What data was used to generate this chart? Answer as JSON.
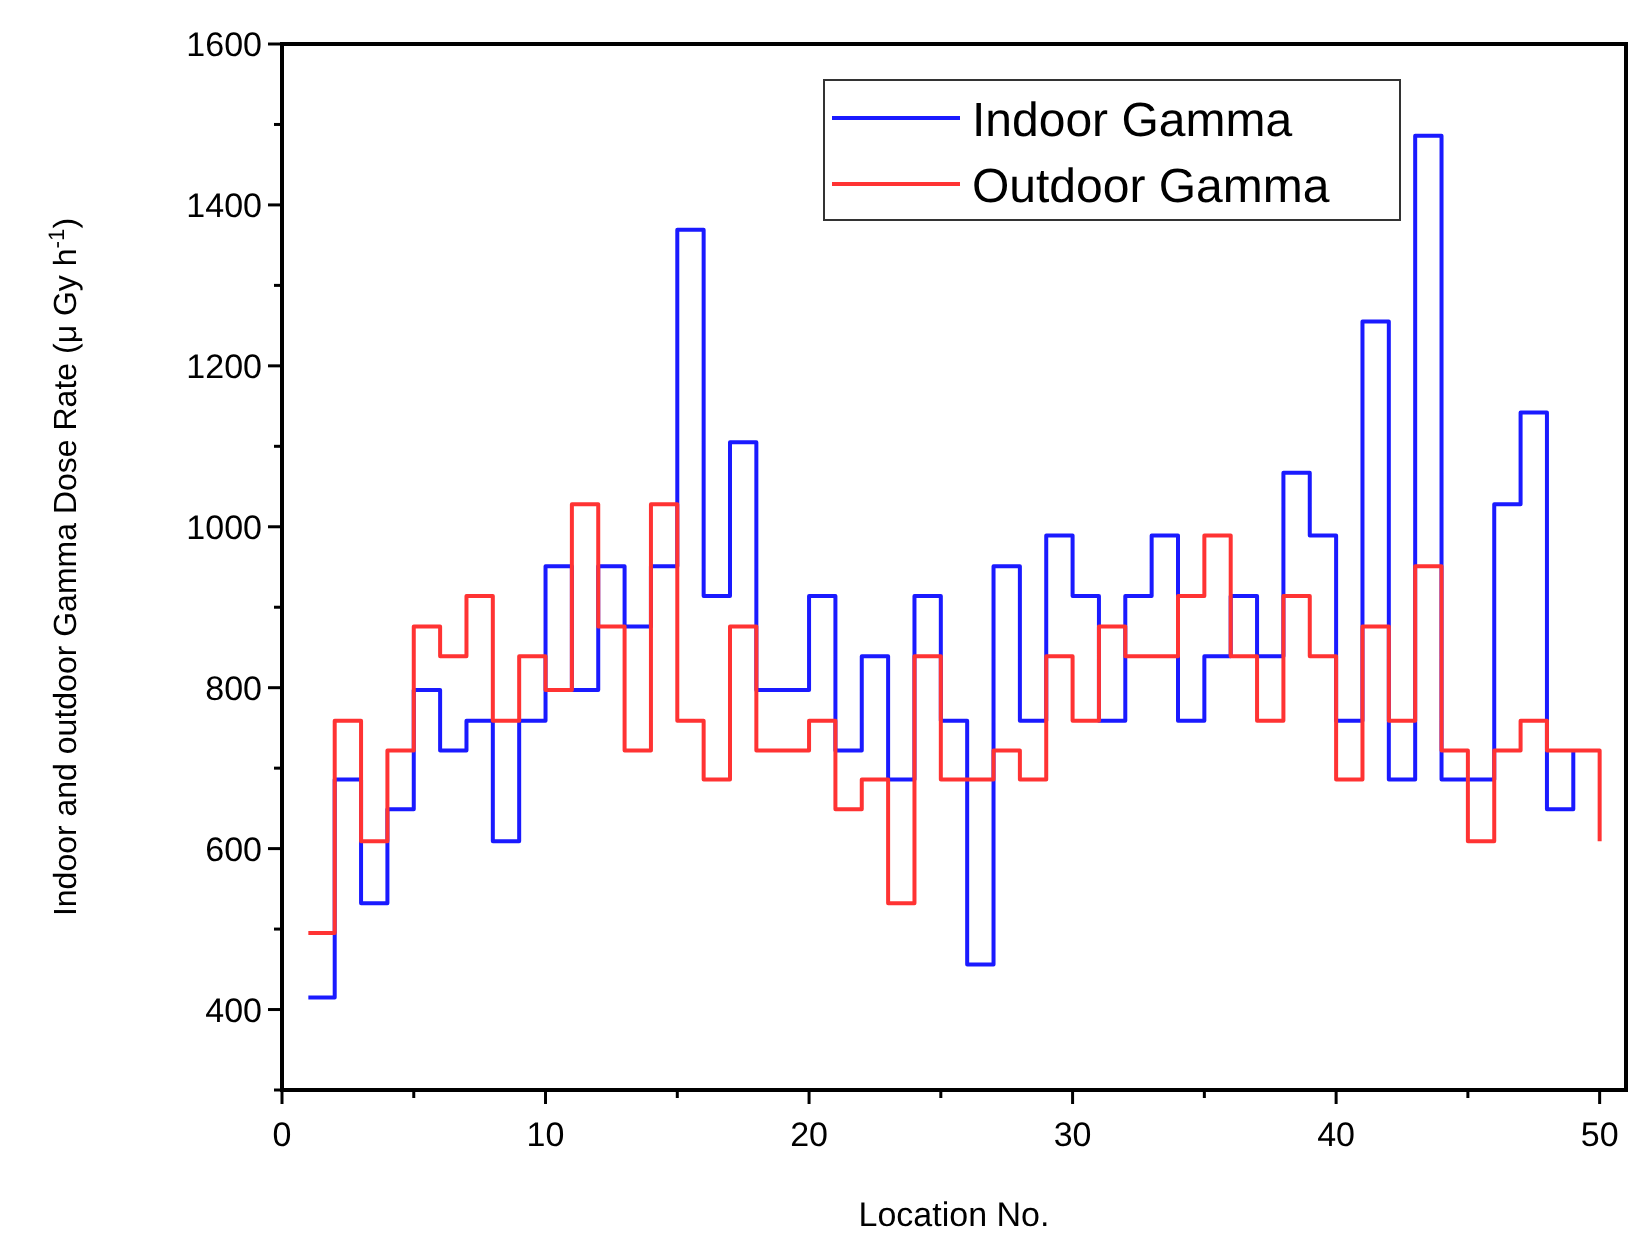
{
  "chart_data": {
    "type": "step",
    "xlabel": "Location No.",
    "ylabel": "Indoor and outdoor Gamma Dose Rate (μ Gy h$^{-1}$)",
    "x": [
      1,
      2,
      3,
      4,
      5,
      6,
      7,
      8,
      9,
      10,
      11,
      12,
      13,
      14,
      15,
      16,
      17,
      18,
      19,
      20,
      21,
      22,
      23,
      24,
      25,
      26,
      27,
      28,
      29,
      30,
      31,
      32,
      33,
      34,
      35,
      36,
      37,
      38,
      39,
      40,
      41,
      42,
      43,
      44,
      45,
      46,
      47,
      48,
      49,
      50
    ],
    "series": [
      {
        "name": "Indoor Gamma",
        "color": "#1a1aff",
        "values": [
          415,
          686,
          532,
          649,
          797,
          722,
          759,
          609,
          759,
          951,
          797,
          951,
          876,
          951,
          1369,
          914,
          1105,
          797,
          797,
          914,
          722,
          839,
          686,
          914,
          759,
          456,
          951,
          759,
          989,
          914,
          759,
          914,
          989,
          759,
          839,
          914,
          839,
          1067,
          989,
          759,
          1255,
          686,
          1486,
          686,
          686,
          1028,
          1142,
          649,
          722,
          null
        ]
      },
      {
        "name": "Outdoor Gamma",
        "color": "#ff3333",
        "values": [
          495,
          759,
          609,
          722,
          876,
          839,
          914,
          759,
          839,
          797,
          1028,
          876,
          722,
          1028,
          759,
          686,
          876,
          722,
          722,
          759,
          649,
          686,
          532,
          839,
          686,
          686,
          722,
          686,
          839,
          759,
          876,
          839,
          839,
          914,
          989,
          839,
          759,
          914,
          839,
          686,
          876,
          759,
          951,
          722,
          609,
          722,
          759,
          722,
          722,
          609
        ]
      }
    ],
    "xlim": [
      0,
      51
    ],
    "xticks": [
      0,
      {
        "value": 5,
        "label": null
      },
      10,
      {
        "value": 15,
        "label": null
      },
      20,
      {
        "value": 25,
        "label": null
      },
      30,
      {
        "value": 35,
        "label": null
      },
      40,
      {
        "value": 45,
        "label": null
      },
      50
    ],
    "ylim": [
      300,
      1600
    ],
    "yticks": [
      {
        "value": 300,
        "label": null
      },
      400,
      {
        "value": 500,
        "label": null
      },
      600,
      {
        "value": 700,
        "label": null
      },
      800,
      {
        "value": 900,
        "label": null
      },
      1000,
      {
        "value": 1100,
        "label": null
      },
      1200,
      {
        "value": 1300,
        "label": null
      },
      1400,
      {
        "value": 1500,
        "label": null
      },
      1600
    ],
    "grid": false,
    "legend": "top right",
    "line_style": "solid",
    "marker": "none"
  }
}
